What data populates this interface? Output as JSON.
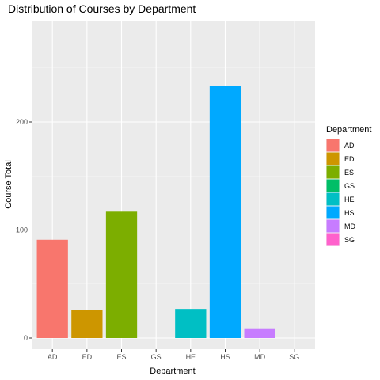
{
  "chart_data": {
    "type": "bar",
    "title": "Distribution of Courses by Department",
    "xlabel": "Department",
    "ylabel": "Course Total",
    "categories": [
      "AD",
      "ED",
      "ES",
      "GS",
      "HE",
      "HS",
      "MD",
      "SG"
    ],
    "values": [
      91,
      26,
      117,
      0,
      27,
      233,
      9,
      0
    ],
    "colors": [
      "#F8766D",
      "#CD9600",
      "#7CAE00",
      "#00BE67",
      "#00BFC4",
      "#00A9FF",
      "#C77CFF",
      "#FF61CC"
    ],
    "yticks": [
      0,
      100,
      200
    ],
    "ylim": [
      0,
      245
    ],
    "grid": true,
    "legend": {
      "title": "Department",
      "position": "right",
      "entries": [
        "AD",
        "ED",
        "ES",
        "GS",
        "HE",
        "HS",
        "MD",
        "SG"
      ]
    }
  }
}
